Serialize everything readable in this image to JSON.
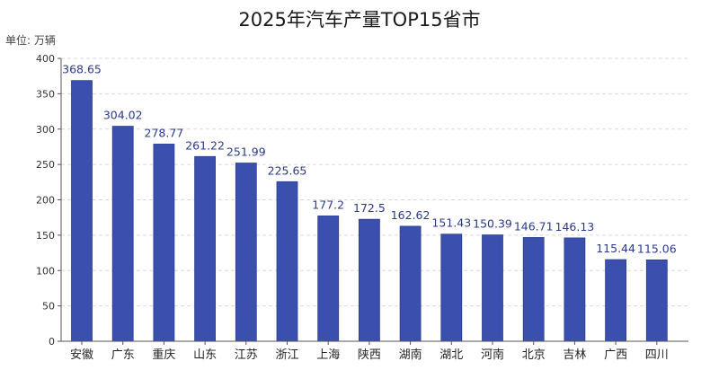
{
  "title": "2025年汽车产量TOP15省市",
  "unit_label": "单位: 万辆",
  "colors": {
    "bar": "#3b4fae",
    "bar_edge": "#2c3c8c",
    "grid": "#d9d9d9",
    "axis": "#555555",
    "data_label": "#2b3a8c"
  },
  "chart_data": {
    "type": "bar",
    "title": "2025年汽车产量TOP15省市",
    "ylabel": "单位: 万辆",
    "xlabel": "",
    "categories": [
      "安徽",
      "广东",
      "重庆",
      "山东",
      "江苏",
      "浙江",
      "上海",
      "陕西",
      "湖南",
      "湖北",
      "河南",
      "北京",
      "吉林",
      "广西",
      "四川"
    ],
    "values": [
      368.65,
      304.02,
      278.77,
      261.22,
      251.99,
      225.65,
      177.2,
      172.5,
      162.62,
      151.43,
      150.39,
      146.71,
      146.13,
      115.44,
      115.06
    ],
    "value_labels": [
      "368.65",
      "304.02",
      "278.77",
      "261.22",
      "251.99",
      "225.65",
      "177.2",
      "172.5",
      "162.62",
      "151.43",
      "150.39",
      "146.71",
      "146.13",
      "115.44",
      "115.06"
    ],
    "yticks": [
      0,
      50,
      100,
      150,
      200,
      250,
      300,
      350,
      400
    ],
    "ylim": [
      0,
      400
    ],
    "grid": "horizontal-dashed",
    "legend": "none"
  }
}
